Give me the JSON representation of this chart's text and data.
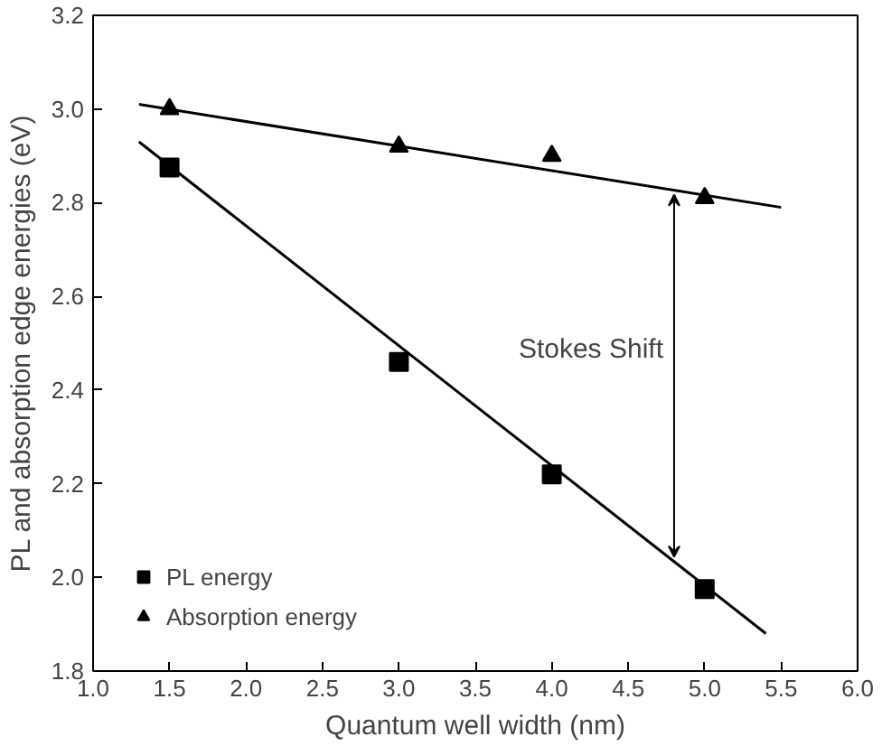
{
  "chart_data": {
    "type": "scatter",
    "xlabel": "Quantum well width (nm)",
    "ylabel": "PL and absorption edge energies (eV)",
    "xlim": [
      1.0,
      6.0
    ],
    "ylim": [
      1.8,
      3.2
    ],
    "xticks": [
      {
        "value": 1.0,
        "label": "1.0"
      },
      {
        "value": 1.5,
        "label": "1.5"
      },
      {
        "value": 2.0,
        "label": "2.0"
      },
      {
        "value": 2.5,
        "label": "2.5"
      },
      {
        "value": 3.0,
        "label": "3.0"
      },
      {
        "value": 3.5,
        "label": "3.5"
      },
      {
        "value": 4.0,
        "label": "4.0"
      },
      {
        "value": 4.5,
        "label": "4.5"
      },
      {
        "value": 5.0,
        "label": "5.0"
      },
      {
        "value": 5.5,
        "label": "5.5"
      },
      {
        "value": 6.0,
        "label": "6.0"
      }
    ],
    "yticks": [
      {
        "value": 1.8,
        "label": "1.8"
      },
      {
        "value": 2.0,
        "label": "2.0"
      },
      {
        "value": 2.2,
        "label": "2.2"
      },
      {
        "value": 2.4,
        "label": "2.4"
      },
      {
        "value": 2.6,
        "label": "2.6"
      },
      {
        "value": 2.8,
        "label": "2.8"
      },
      {
        "value": 3.0,
        "label": "3.0"
      },
      {
        "value": 3.2,
        "label": "3.2"
      }
    ],
    "x": [
      1.5,
      3.0,
      4.0,
      5.0
    ],
    "series": [
      {
        "name": "PL energy",
        "color": "#000000",
        "marker": "square",
        "values": [
          2.875,
          2.46,
          2.22,
          1.975
        ]
      },
      {
        "name": "Absorption energy",
        "color": "#000000",
        "marker": "triangle",
        "values": [
          3.0,
          2.92,
          2.9,
          2.81
        ]
      },
      {
        "type": "line",
        "color": "#000000",
        "x": [
          1.3,
          5.4
        ],
        "values": [
          2.93,
          1.88
        ]
      },
      {
        "type": "line",
        "color": "#000000",
        "x": [
          1.3,
          5.5
        ],
        "values": [
          3.01,
          2.79
        ]
      }
    ],
    "annotations": [
      "Stokes Shift"
    ],
    "legend": "bottom left",
    "grid": false
  }
}
